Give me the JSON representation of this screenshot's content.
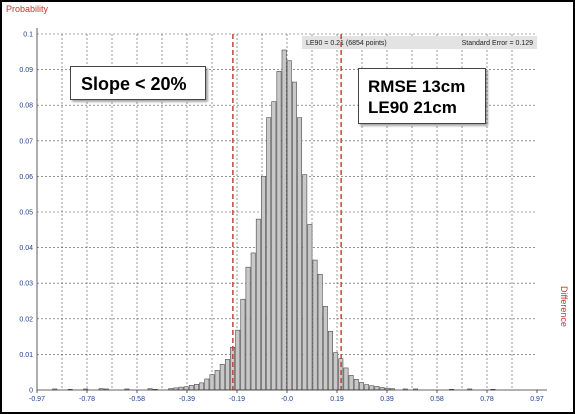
{
  "chart_data": {
    "type": "bar",
    "title": "",
    "ylabel": "Probability",
    "xlabel": "Difference",
    "xlim": [
      -0.97,
      0.97
    ],
    "ylim": [
      0,
      0.1
    ],
    "x_ticks": [
      "-0.97",
      "-0.78",
      "-0.58",
      "-0.39",
      "-0.19",
      "-0.0",
      "0.19",
      "0.39",
      "0.58",
      "0.78",
      "0.97"
    ],
    "y_ticks": [
      "0",
      "0.01",
      "0.02",
      "0.03",
      "0.04",
      "0.05",
      "0.06",
      "0.07",
      "0.08",
      "0.09",
      "0.1"
    ],
    "bin_width": 0.019,
    "bins": [
      {
        "x": -0.9,
        "y": 0.0003
      },
      {
        "x": -0.84,
        "y": 0.0002
      },
      {
        "x": -0.78,
        "y": 0.0003
      },
      {
        "x": -0.72,
        "y": 0.0004
      },
      {
        "x": -0.7,
        "y": 0.0003
      },
      {
        "x": -0.62,
        "y": 0.0003
      },
      {
        "x": -0.53,
        "y": 0.0004
      },
      {
        "x": -0.51,
        "y": 0.0002
      },
      {
        "x": -0.45,
        "y": 0.0004
      },
      {
        "x": -0.43,
        "y": 0.0006
      },
      {
        "x": -0.41,
        "y": 0.0008
      },
      {
        "x": -0.39,
        "y": 0.0009
      },
      {
        "x": -0.37,
        "y": 0.0013
      },
      {
        "x": -0.35,
        "y": 0.0016
      },
      {
        "x": -0.33,
        "y": 0.002
      },
      {
        "x": -0.31,
        "y": 0.0031
      },
      {
        "x": -0.29,
        "y": 0.0043
      },
      {
        "x": -0.27,
        "y": 0.0055
      },
      {
        "x": -0.25,
        "y": 0.0072
      },
      {
        "x": -0.23,
        "y": 0.0086
      },
      {
        "x": -0.21,
        "y": 0.012
      },
      {
        "x": -0.19,
        "y": 0.0168
      },
      {
        "x": -0.17,
        "y": 0.0255
      },
      {
        "x": -0.15,
        "y": 0.0345
      },
      {
        "x": -0.13,
        "y": 0.0385
      },
      {
        "x": -0.11,
        "y": 0.048
      },
      {
        "x": -0.09,
        "y": 0.06
      },
      {
        "x": -0.07,
        "y": 0.0765
      },
      {
        "x": -0.05,
        "y": 0.081
      },
      {
        "x": -0.03,
        "y": 0.0895
      },
      {
        "x": -0.01,
        "y": 0.0955
      },
      {
        "x": 0.01,
        "y": 0.0925
      },
      {
        "x": 0.03,
        "y": 0.0865
      },
      {
        "x": 0.05,
        "y": 0.0765
      },
      {
        "x": 0.07,
        "y": 0.0605
      },
      {
        "x": 0.09,
        "y": 0.0465
      },
      {
        "x": 0.11,
        "y": 0.0365
      },
      {
        "x": 0.13,
        "y": 0.0325
      },
      {
        "x": 0.15,
        "y": 0.0235
      },
      {
        "x": 0.17,
        "y": 0.0165
      },
      {
        "x": 0.19,
        "y": 0.0105
      },
      {
        "x": 0.21,
        "y": 0.0088
      },
      {
        "x": 0.23,
        "y": 0.0062
      },
      {
        "x": 0.25,
        "y": 0.0041
      },
      {
        "x": 0.27,
        "y": 0.003
      },
      {
        "x": 0.29,
        "y": 0.0021
      },
      {
        "x": 0.31,
        "y": 0.0015
      },
      {
        "x": 0.33,
        "y": 0.0012
      },
      {
        "x": 0.35,
        "y": 0.001
      },
      {
        "x": 0.37,
        "y": 0.0007
      },
      {
        "x": 0.39,
        "y": 0.0005
      },
      {
        "x": 0.41,
        "y": 0.0004
      },
      {
        "x": 0.46,
        "y": 0.0003
      },
      {
        "x": 0.5,
        "y": 0.0003
      },
      {
        "x": 0.64,
        "y": 0.0002
      },
      {
        "x": 0.71,
        "y": 0.0003
      },
      {
        "x": 0.8,
        "y": 0.0002
      }
    ],
    "vlines": [
      -0.21,
      0.21
    ],
    "grid": true,
    "bar_color": "#c8c8c8",
    "line_color": "#c0392b",
    "header_text": "LE90 = 0.21  (6854 points)",
    "header_text_right": "Standard Error = 0.129"
  },
  "annotations": {
    "slope": "Slope < 20%",
    "rmse": "RMSE 13cm",
    "le90": "LE90 21cm"
  }
}
